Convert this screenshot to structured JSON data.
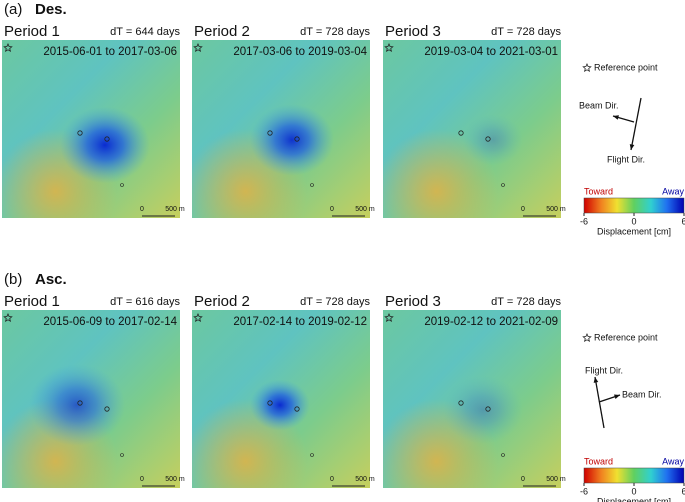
{
  "sections": [
    {
      "label": "(a)",
      "title": "Des.",
      "panels": [
        {
          "period": "Period 1",
          "dt": "dT = 644 days",
          "dates": "2015-06-01 to 2017-03-06"
        },
        {
          "period": "Period 2",
          "dt": "dT = 728 days",
          "dates": "2017-03-06 to 2019-03-04"
        },
        {
          "period": "Period 3",
          "dt": "dT = 728 days",
          "dates": "2019-03-04 to 2021-03-01"
        }
      ],
      "scale": {
        "zero": "0",
        "length": "500 m"
      },
      "reference": "Reference point",
      "beam": "Beam Dir.",
      "flight": "Flight Dir.",
      "colorbar": {
        "toward": "Toward",
        "away": "Away",
        "ticks": [
          -6,
          0,
          6
        ],
        "label": "Displacement [cm]"
      }
    },
    {
      "label": "(b)",
      "title": "Asc.",
      "panels": [
        {
          "period": "Period 1",
          "dt": "dT = 616 days",
          "dates": "2015-06-09 to 2017-02-14"
        },
        {
          "period": "Period 2",
          "dt": "dT = 728 days",
          "dates": "2017-02-14 to 2019-02-12"
        },
        {
          "period": "Period 3",
          "dt": "dT = 728 days",
          "dates": "2019-02-12 to 2021-02-09"
        }
      ],
      "scale": {
        "zero": "0",
        "length": "500 m"
      },
      "reference": "Reference point",
      "beam": "Beam Dir.",
      "flight": "Flight Dir.",
      "colorbar": {
        "toward": "Toward",
        "away": "Away",
        "ticks": [
          -6,
          0,
          6
        ],
        "label": "Displacement [cm]"
      }
    }
  ]
}
